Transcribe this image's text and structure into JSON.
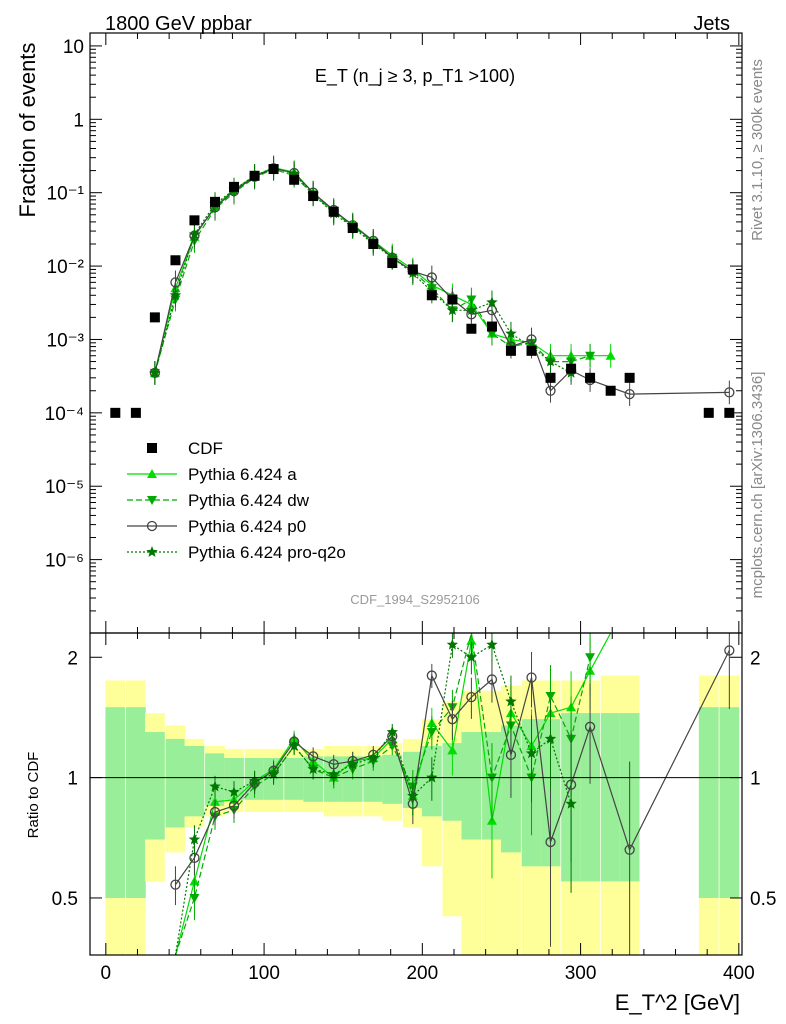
{
  "header": {
    "left_label": "1800 GeV ppbar",
    "right_label": "Jets",
    "side_label_top": "Rivet 3.1.10, ≥ 300k events",
    "side_label_bottom": "mcplots.cern.ch [arXiv:1306.3436]",
    "analysis_id": "CDF_1994_S2952106"
  },
  "chart_data": {
    "type": "scatter",
    "title": "E_T (n_j ≥ 3, p_T1 >100)",
    "xlabel": "E_T^2 [GeV]",
    "ylabel": "Fraction of events",
    "ratio_ylabel": "Ratio to CDF",
    "xlim": [
      -10,
      402
    ],
    "ylim_log": [
      1e-07,
      15
    ],
    "ratio_ylim": [
      0.36,
      2.3
    ],
    "x_ticks": [
      0,
      100,
      200,
      300,
      400
    ],
    "y_ticks_main": [
      {
        "value": 10,
        "label": "10"
      },
      {
        "value": 1,
        "label": "1"
      },
      {
        "value": 0.1,
        "label": "10⁻¹"
      },
      {
        "value": 0.01,
        "label": "10⁻²"
      },
      {
        "value": 0.001,
        "label": "10⁻³"
      },
      {
        "value": 0.0001,
        "label": "10⁻⁴"
      },
      {
        "value": 1e-05,
        "label": "10⁻⁵"
      },
      {
        "value": 1e-06,
        "label": "10⁻⁶"
      }
    ],
    "y_ticks_ratio": [
      {
        "value": 0.5,
        "label": "0.5"
      },
      {
        "value": 1,
        "label": "1"
      },
      {
        "value": 2,
        "label": "2"
      }
    ],
    "legend": [
      {
        "name": "CDF",
        "color": "#000000",
        "marker": "square",
        "dash": "none"
      },
      {
        "name": "Pythia 6.424 a",
        "color": "#00dd00",
        "marker": "triangle-up",
        "dash": "solid"
      },
      {
        "name": "Pythia 6.424 dw",
        "color": "#00aa00",
        "marker": "triangle-down",
        "dash": "dashed"
      },
      {
        "name": "Pythia 6.424 p0",
        "color": "#444444",
        "marker": "circle",
        "dash": "solid"
      },
      {
        "name": "Pythia 6.424 pro-q2o",
        "color": "#007700",
        "marker": "star",
        "dash": "dotted"
      }
    ],
    "cdf": {
      "x": [
        6,
        19,
        31,
        44,
        56,
        69,
        81,
        94,
        106,
        119,
        131,
        144,
        156,
        169,
        181,
        194,
        206,
        219,
        231,
        244,
        256,
        269,
        281,
        294,
        306,
        319,
        331,
        381,
        394
      ],
      "y": [
        0.0001,
        0.0001,
        0.002,
        0.012,
        0.042,
        0.075,
        0.12,
        0.17,
        0.21,
        0.15,
        0.09,
        0.055,
        0.033,
        0.02,
        0.011,
        0.009,
        0.004,
        0.0035,
        0.0014,
        0.0015,
        0.0007,
        0.0007,
        0.0003,
        0.0004,
        0.0003,
        0.0002,
        0.0003,
        0.0001,
        0.0001
      ]
    },
    "ratio_bands": {
      "green_half": [
        0.5,
        0.5,
        0.3,
        0.25,
        0.2,
        0.15,
        0.12,
        0.12,
        0.12,
        0.12,
        0.13,
        0.13,
        0.13,
        0.13,
        0.14,
        0.16,
        0.2,
        0.22,
        0.3,
        0.3,
        0.35,
        0.4,
        0.4,
        0.45,
        0.45,
        0.45,
        0.45,
        0.5,
        0.5
      ],
      "yellow_half": [
        0.75,
        0.75,
        0.45,
        0.35,
        0.25,
        0.2,
        0.18,
        0.18,
        0.18,
        0.18,
        0.18,
        0.2,
        0.2,
        0.2,
        0.22,
        0.25,
        0.4,
        0.55,
        0.65,
        0.65,
        0.7,
        0.75,
        0.75,
        0.75,
        0.75,
        0.8,
        0.8,
        0.8,
        0.8
      ]
    },
    "series": [
      {
        "name": "Pythia 6.424 a",
        "x": [
          31,
          44,
          56,
          69,
          81,
          94,
          106,
          119,
          131,
          144,
          156,
          169,
          181,
          194,
          206,
          219,
          231,
          244,
          256,
          269,
          281,
          294,
          306,
          319
        ],
        "y": [
          0.00035,
          0.005,
          0.025,
          0.065,
          0.11,
          0.17,
          0.22,
          0.19,
          0.1,
          0.055,
          0.037,
          0.022,
          0.014,
          0.009,
          0.0055,
          0.004,
          0.003,
          0.0012,
          0.001,
          0.0009,
          0.0006,
          0.0006,
          0.0006,
          0.0006
        ],
        "ratio": [
          null,
          0.3,
          0.55,
          0.87,
          0.88,
          0.98,
          1.05,
          1.25,
          1.1,
          1.0,
          1.1,
          1.12,
          1.25,
          0.9,
          1.37,
          1.17,
          2.2,
          0.78,
          1.45,
          1.2,
          1.45,
          1.5,
          1.85,
          2.3
        ]
      },
      {
        "name": "Pythia 6.424 dw",
        "x": [
          31,
          44,
          56,
          69,
          81,
          94,
          106,
          119,
          131,
          144,
          156,
          169,
          181,
          194,
          206,
          219,
          231,
          244,
          256,
          269,
          281,
          294,
          306
        ],
        "y": [
          0.00035,
          0.0035,
          0.022,
          0.06,
          0.1,
          0.16,
          0.21,
          0.17,
          0.095,
          0.055,
          0.035,
          0.021,
          0.013,
          0.0085,
          0.005,
          0.0025,
          0.0035,
          0.0012,
          0.0008,
          0.0009,
          0.0005,
          0.0005,
          0.0006
        ],
        "ratio": [
          null,
          0.28,
          0.5,
          0.8,
          0.83,
          0.95,
          1.02,
          1.2,
          1.05,
          1.0,
          1.05,
          1.1,
          1.2,
          0.95,
          1.3,
          1.5,
          2.35,
          1.0,
          1.35,
          1.0,
          1.6,
          1.25,
          2.0
        ]
      },
      {
        "name": "Pythia 6.424 p0",
        "x": [
          31,
          44,
          56,
          69,
          81,
          94,
          106,
          119,
          131,
          144,
          156,
          169,
          181,
          194,
          206,
          219,
          231,
          244,
          256,
          269,
          281,
          294,
          306,
          331,
          394
        ],
        "y": [
          0.00035,
          0.006,
          0.026,
          0.063,
          0.105,
          0.165,
          0.215,
          0.185,
          0.1,
          0.058,
          0.036,
          0.022,
          0.013,
          0.0085,
          0.007,
          0.0035,
          0.0022,
          0.0025,
          0.0008,
          0.001,
          0.0002,
          0.00038,
          0.00028,
          0.00018,
          0.00019
        ],
        "ratio": [
          null,
          0.54,
          0.63,
          0.82,
          0.85,
          0.97,
          1.04,
          1.23,
          1.13,
          1.08,
          1.1,
          1.14,
          1.27,
          0.86,
          1.8,
          1.4,
          1.59,
          1.76,
          1.14,
          1.78,
          0.69,
          0.96,
          1.34,
          0.66,
          2.08
        ]
      },
      {
        "name": "Pythia 6.424 pro-q2o",
        "x": [
          31,
          44,
          56,
          69,
          81,
          94,
          106,
          119,
          131,
          144,
          156,
          169,
          181,
          194,
          206,
          219,
          231,
          244,
          256,
          269,
          281,
          294
        ],
        "y": [
          0.00035,
          0.004,
          0.027,
          0.07,
          0.11,
          0.17,
          0.22,
          0.18,
          0.095,
          0.052,
          0.034,
          0.02,
          0.013,
          0.008,
          0.0045,
          0.0025,
          0.0025,
          0.0032,
          0.0012,
          0.0008,
          0.0005,
          0.00035
        ],
        "ratio": [
          null,
          0.35,
          0.7,
          0.95,
          0.92,
          0.98,
          1.02,
          1.2,
          1.05,
          1.02,
          1.08,
          1.12,
          1.3,
          0.9,
          1.0,
          2.15,
          2.0,
          2.15,
          1.55,
          1.15,
          1.25,
          0.86
        ]
      }
    ]
  }
}
